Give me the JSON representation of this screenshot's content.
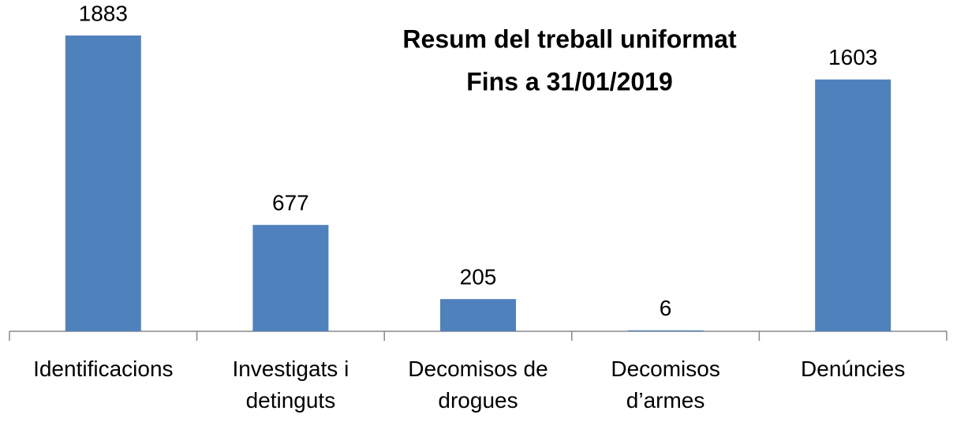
{
  "chart_data": {
    "type": "bar",
    "title": "Resum del treball uniformat",
    "subtitle": "Fins a 31/01/2019",
    "categories": [
      "Identificacions",
      "Investigats i detinguts",
      "Decomisos de drogues",
      "Decomisos d’armes",
      "Denúncies"
    ],
    "values": [
      1883,
      677,
      205,
      6,
      1603
    ],
    "color": "#4f81bd"
  }
}
